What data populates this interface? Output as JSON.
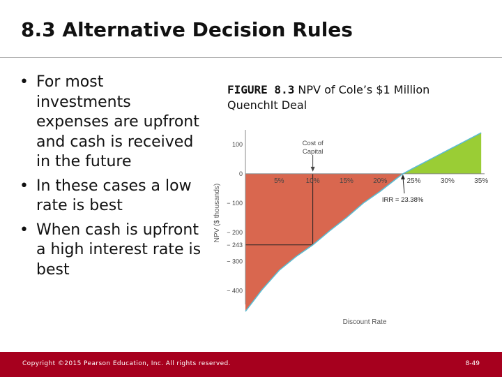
{
  "slide": {
    "title": "8.3 Alternative Decision Rules",
    "bullets": [
      "For most investments expenses are upfront and cash is received in the future",
      "In these cases a low rate is best",
      "When cash is upfront a high interest rate is best"
    ],
    "bullet_glyph": "•"
  },
  "figure": {
    "label": "FIGURE 8.3",
    "caption": "NPV of Cole’s $1 Million QuenchIt Deal"
  },
  "chart_data": {
    "type": "area",
    "title": "",
    "xlabel": "Discount Rate",
    "ylabel": "NPV ($ thousands)",
    "x_ticks": [
      5,
      10,
      15,
      20,
      25,
      30,
      35
    ],
    "x_tick_labels": [
      "5%",
      "10%",
      "15%",
      "20%",
      "25%",
      "30%",
      "35%"
    ],
    "y_ticks": [
      100,
      0,
      -100,
      -200,
      -243,
      -300,
      -400
    ],
    "y_tick_labels": [
      "100",
      "0",
      "− 100",
      "− 200",
      "− 243",
      "− 300",
      "− 400"
    ],
    "xlim": [
      0,
      35.5
    ],
    "ylim": [
      -470,
      150
    ],
    "series": [
      {
        "x": [
          0,
          2.5,
          5,
          7.5,
          10,
          12.5,
          15,
          17.5,
          20,
          22.5,
          23.38,
          25,
          27.5,
          30,
          32.5,
          35
        ],
        "values": [
          -470,
          -395,
          -330,
          -283,
          -243,
          -195,
          -150,
          -100,
          -60,
          -15,
          0,
          20,
          50,
          80,
          110,
          140
        ]
      }
    ],
    "fill_negative_color": "#d9674f",
    "fill_positive_color": "#9acd35",
    "line_color": "#5bbcd2",
    "annotations": [
      {
        "text": "Cost of Capital",
        "lines": [
          "Cost of",
          "Capital"
        ],
        "x": 10
      },
      {
        "text": "IRR = 23.38%",
        "x": 23.38
      }
    ],
    "reference_point": {
      "x": 10,
      "y": -243
    },
    "grid": false
  },
  "footer": {
    "copyright": "Copyright ©2015 Pearson Education, Inc. All rights reserved.",
    "page": "8-49"
  }
}
